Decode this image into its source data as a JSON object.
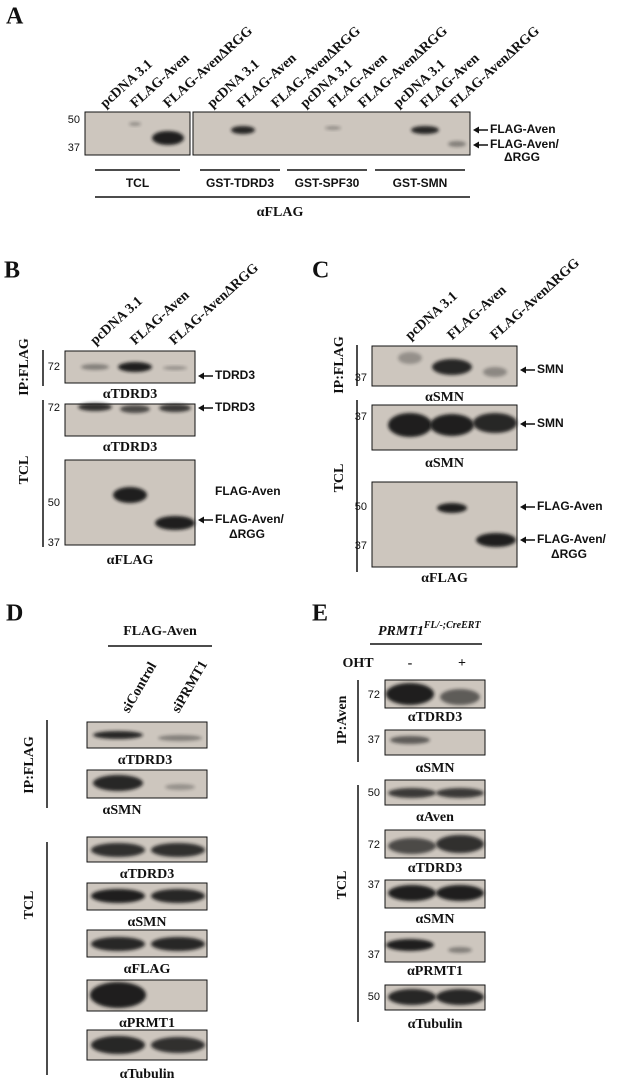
{
  "panel_a": {
    "label": "A",
    "lanes": [
      "pcDNA 3.1",
      "FLAG-Aven",
      "FLAG-AvenΔRGG",
      "pcDNA 3.1",
      "FLAG-Aven",
      "FLAG-AvenΔRGG",
      "pcDNA 3.1",
      "FLAG-Aven",
      "FLAG-AvenΔRGG",
      "pcDNA 3.1",
      "FLAG-Aven",
      "FLAG-AvenΔRGG"
    ],
    "markers": [
      50,
      37
    ],
    "bands": [
      "FLAG-Aven",
      "FLAG-Aven/",
      "ΔRGG"
    ],
    "groups": [
      "TCL",
      "GST-TDRD3",
      "GST-SPF30",
      "GST-SMN"
    ],
    "antibody": "αFLAG"
  },
  "panel_b": {
    "label": "B",
    "lanes": [
      "pcDNA 3.1",
      "FLAG-Aven",
      "FLAG-AvenΔRGG"
    ],
    "sections": [
      "IP:FLAG",
      "TCL"
    ],
    "blots": [
      {
        "markers": [
          72
        ],
        "antibody": "αTDRD3",
        "bands": [
          "TDRD3"
        ]
      },
      {
        "markers": [
          72
        ],
        "antibody": "αTDRD3",
        "bands": [
          "TDRD3"
        ]
      },
      {
        "markers": [
          50,
          37
        ],
        "antibody": "αFLAG",
        "bands": [
          "FLAG-Aven",
          "FLAG-Aven/",
          "ΔRGG"
        ]
      }
    ]
  },
  "panel_c": {
    "label": "C",
    "lanes": [
      "pcDNA 3.1",
      "FLAG-Aven",
      "FLAG-AvenΔRGG"
    ],
    "sections": [
      "IP:FLAG",
      "TCL"
    ],
    "blots": [
      {
        "markers": [
          37
        ],
        "antibody": "αSMN",
        "bands": [
          "SMN"
        ]
      },
      {
        "markers": [
          37
        ],
        "antibody": "αSMN",
        "bands": [
          "SMN"
        ]
      },
      {
        "markers": [
          50,
          37
        ],
        "antibody": "αFLAG",
        "bands": [
          "FLAG-Aven",
          "FLAG-Aven/",
          "ΔRGG"
        ]
      }
    ]
  },
  "panel_d": {
    "label": "D",
    "header": "FLAG-Aven",
    "lanes": [
      "siControl",
      "siPRMT1"
    ],
    "sections": [
      "IP:FLAG",
      "TCL"
    ],
    "blots": [
      {
        "antibody": "αTDRD3"
      },
      {
        "antibody": "αSMN"
      },
      {
        "antibody": "αTDRD3"
      },
      {
        "antibody": "αSMN"
      },
      {
        "antibody": "αFLAG"
      },
      {
        "antibody": "αPRMT1"
      },
      {
        "antibody": "αTubulin"
      }
    ]
  },
  "panel_e": {
    "label": "E",
    "genotype": "PRMT1",
    "genotype_superscript": "FL/-;CreERT",
    "treatment": "OHT",
    "conditions": [
      "-",
      "+"
    ],
    "sections": [
      "IP:Aven",
      "TCL"
    ],
    "blots": [
      {
        "markers": [
          72
        ],
        "antibody": "αTDRD3"
      },
      {
        "markers": [
          37
        ],
        "antibody": "αSMN"
      },
      {
        "markers": [
          50
        ],
        "antibody": "αAven"
      },
      {
        "markers": [
          72
        ],
        "antibody": "αTDRD3"
      },
      {
        "markers": [
          37
        ],
        "antibody": "αSMN"
      },
      {
        "markers": [
          37
        ],
        "antibody": "αPRMT1"
      },
      {
        "markers": [
          50
        ],
        "antibody": "αTubulin"
      }
    ]
  }
}
